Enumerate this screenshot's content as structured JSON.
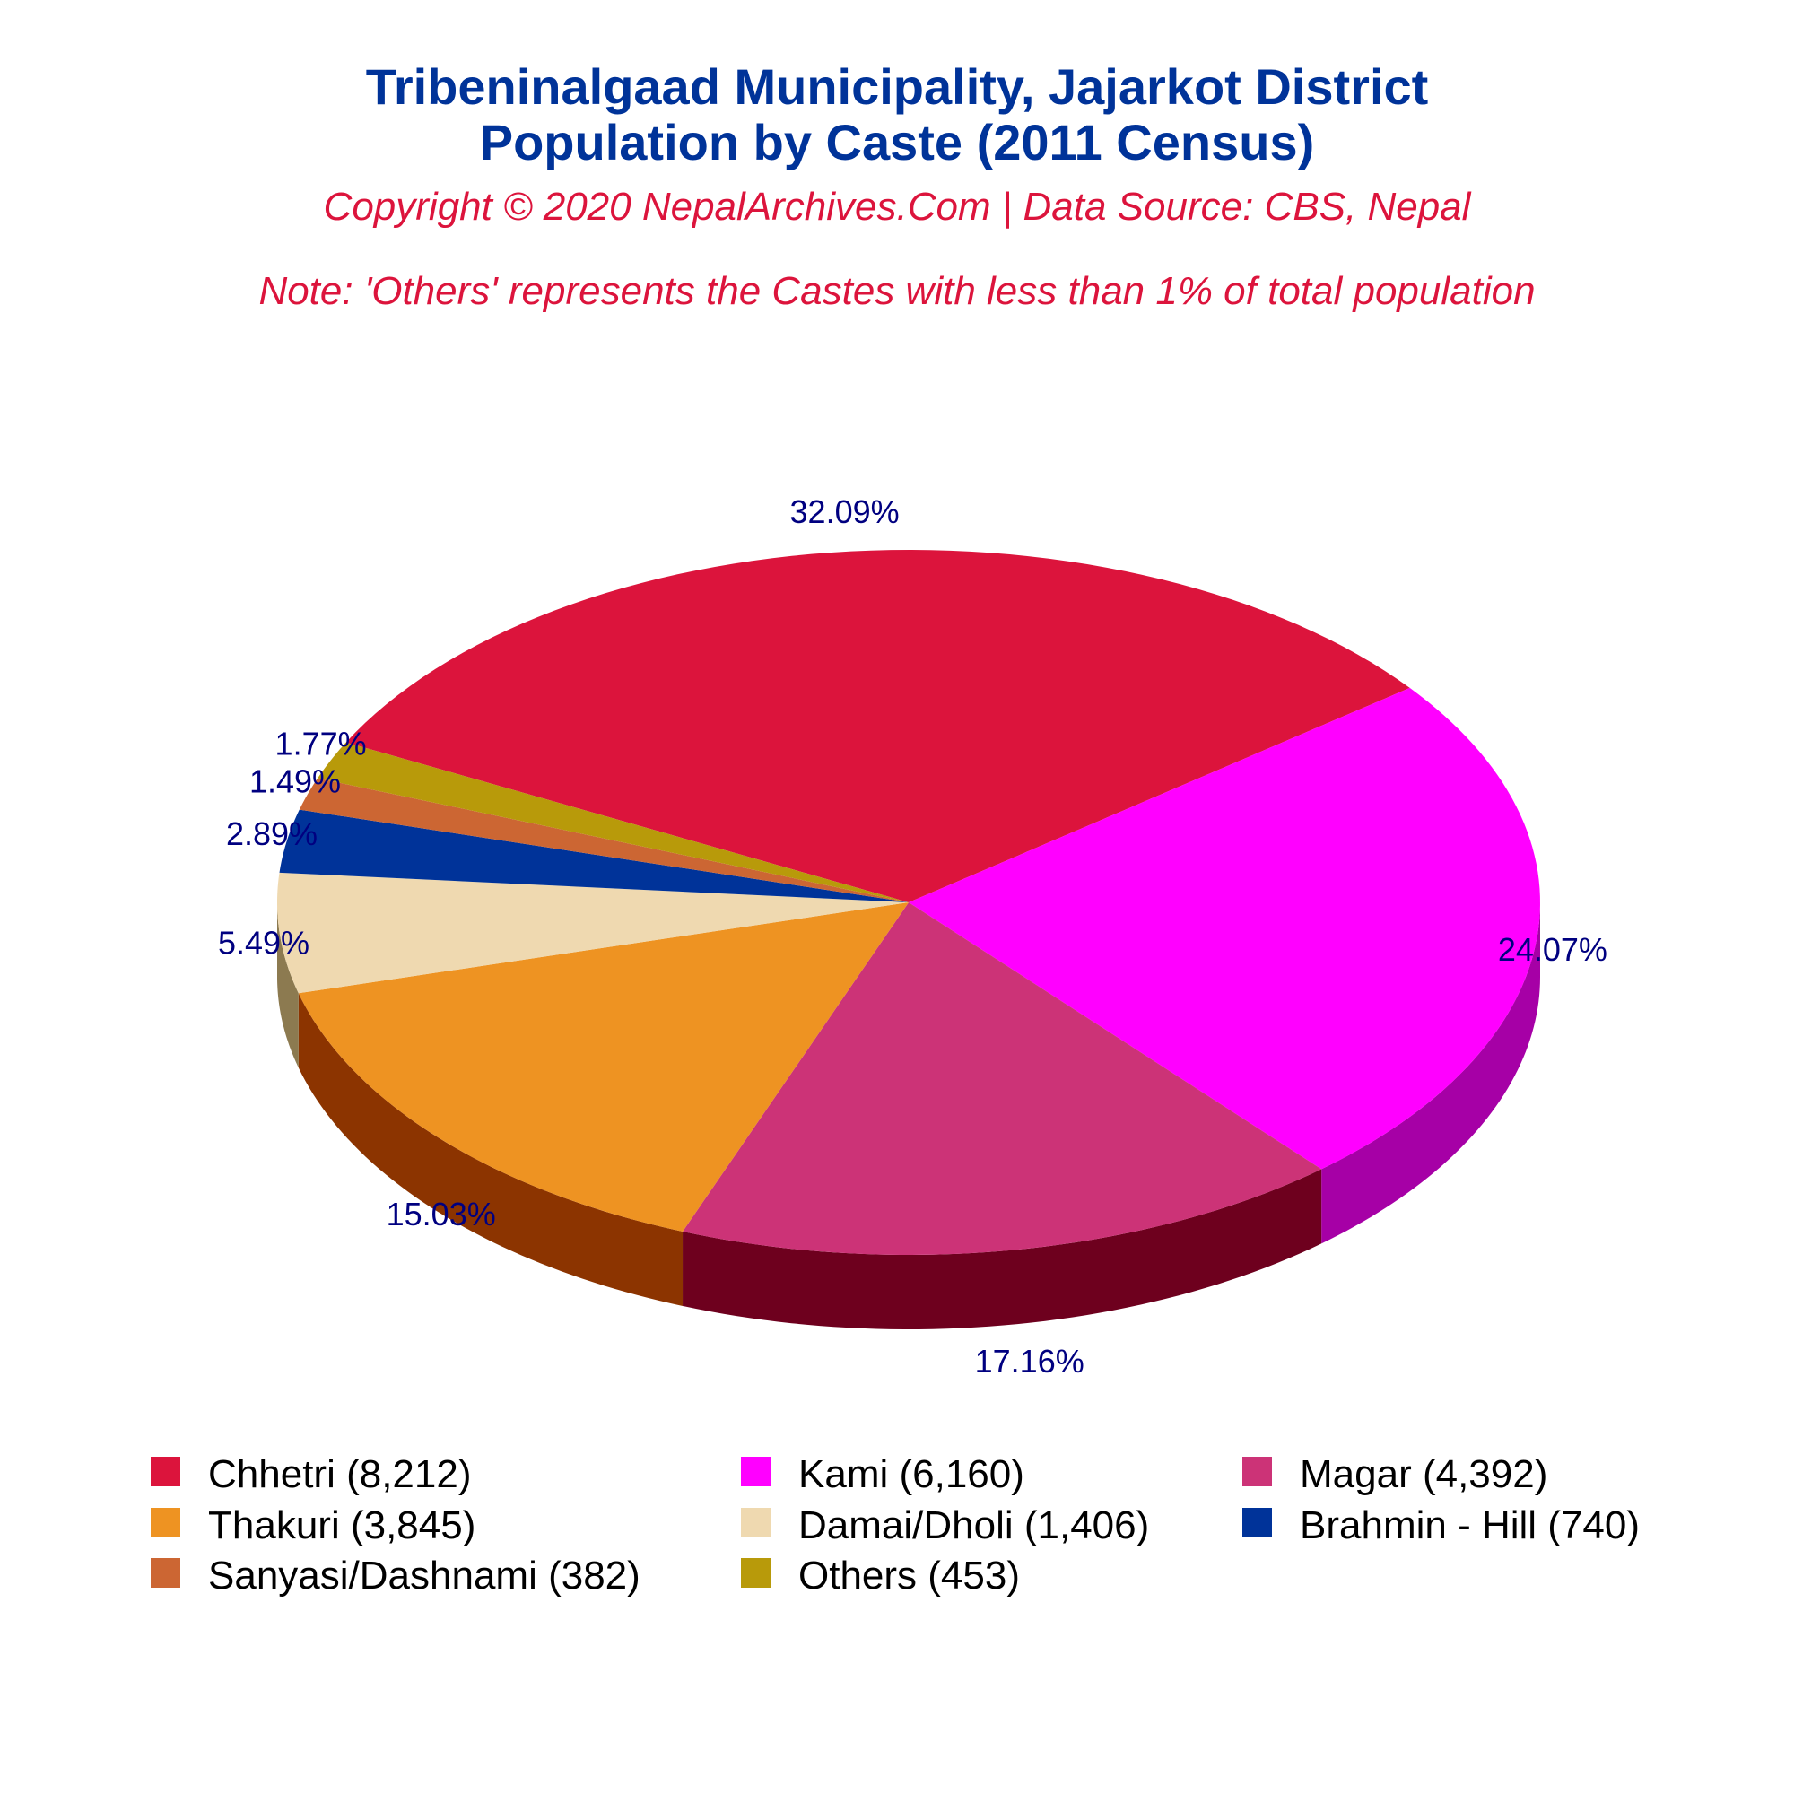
{
  "chart_data": {
    "type": "pie",
    "style": "3d",
    "title": "Tribeninalgaad Municipality, Jajarkot District",
    "title_line2": "Population by Caste (2011 Census)",
    "subtitle": "Copyright © 2020 NepalArchives.Com | Data Source: CBS, Nepal",
    "note": "Note: 'Others' represents the Castes with less than 1% of total population",
    "colors": {
      "title": "#003399",
      "subtitle": "#dc143c",
      "percent_label": "#000080"
    },
    "slices": [
      {
        "label": "Chhetri (8,212)",
        "value": 8212,
        "percent": "32.09%",
        "color": "#dc143c",
        "side": "#7a0014"
      },
      {
        "label": "Kami (6,160)",
        "value": 6160,
        "percent": "24.07%",
        "color": "#ff00ff",
        "side": "#a600a6"
      },
      {
        "label": "Magar (4,392)",
        "value": 4392,
        "percent": "17.16%",
        "color": "#cc3377",
        "side": "#6e001e"
      },
      {
        "label": "Thakuri (3,845)",
        "value": 3845,
        "percent": "15.03%",
        "color": "#ee9322",
        "side": "#8c3400"
      },
      {
        "label": "Damai/Dholi (1,406)",
        "value": 1406,
        "percent": "5.49%",
        "color": "#efd9b0",
        "side": "#8c7a50"
      },
      {
        "label": "Brahmin - Hill (740)",
        "value": 740,
        "percent": "2.89%",
        "color": "#003399",
        "side": "#001a55"
      },
      {
        "label": "Sanyasi/Dashnami (382)",
        "value": 382,
        "percent": "1.49%",
        "color": "#cc6633",
        "side": "#6a2a10"
      },
      {
        "label": "Others (453)",
        "value": 453,
        "percent": "1.77%",
        "color": "#b89a0a",
        "side": "#5e4e00"
      }
    ],
    "legend": {
      "position": "bottom",
      "columns": 3
    }
  }
}
